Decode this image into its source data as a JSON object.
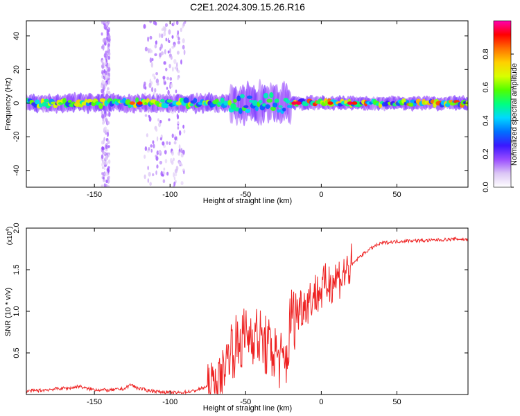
{
  "figure": {
    "title": "C2E1.2024.309.15.26.R16"
  },
  "chart_data": [
    {
      "type": "heatmap",
      "title": "C2E1.2024.309.15.26.R16",
      "xlabel": "Height of straight line (km)",
      "ylabel": "Frequency (Hz)",
      "xlim": [
        -195,
        97
      ],
      "ylim": [
        -50,
        49
      ],
      "xticks": [
        -150,
        -100,
        -50,
        0,
        50
      ],
      "yticks": [
        -40,
        -20,
        0,
        20,
        40
      ],
      "xtick_labels": [
        "-150",
        "-100",
        "-50",
        "0",
        "50"
      ],
      "ytick_labels": [
        "-40",
        "-20",
        "0",
        "20",
        "40"
      ],
      "colorbar": {
        "label": "Normalized spectral amplitude",
        "range": [
          0.0,
          1.0
        ],
        "ticks": [
          0.0,
          0.2,
          0.4,
          0.6,
          0.8
        ],
        "tick_labels": [
          "0.0",
          "0.2",
          "0.4",
          "0.6",
          "0.8"
        ],
        "colors": [
          "#ffffff",
          "#dcc6f5",
          "#9a4dff",
          "#3a18ff",
          "#0070ff",
          "#00d8ff",
          "#00ff80",
          "#50ff00",
          "#d8ff00",
          "#ffd000",
          "#ff7000",
          "#ff0000",
          "#ff00b0"
        ]
      },
      "band": {
        "center_frequency_hz": 0,
        "segments": [
          {
            "x_range": [
              -195,
              -60
            ],
            "half_width_hz": 3,
            "peak_amplitude": 0.75
          },
          {
            "x_range": [
              -60,
              -20
            ],
            "half_width_hz": 8,
            "peak_amplitude": 0.6
          },
          {
            "x_range": [
              -20,
              97
            ],
            "half_width_hz": 2,
            "peak_amplitude": 0.9
          }
        ],
        "peaks": [
          {
            "x": -125,
            "amplitude": 0.85
          },
          {
            "x": -120,
            "amplitude": 0.9
          },
          {
            "x": -18,
            "amplitude": 0.95
          },
          {
            "x": -15,
            "amplitude": 0.95
          },
          {
            "x": 6,
            "amplitude": 0.9
          },
          {
            "x": 19,
            "amplitude": 0.95
          },
          {
            "x": 22,
            "amplitude": 0.9
          }
        ]
      },
      "scatter_noise_x_ranges": [
        [
          -145,
          -140
        ],
        [
          -117,
          -90
        ]
      ]
    },
    {
      "type": "line",
      "xlabel": "Height of straight line (km)",
      "ylabel": "SNR (10 * v/v)",
      "y_multiplier_label": "(x10",
      "y_multiplier_exponent": "4",
      "y_multiplier_close": ")",
      "xlim": [
        -195,
        97
      ],
      "ylim": [
        0,
        2.0
      ],
      "xticks": [
        -150,
        -100,
        -50,
        0,
        50
      ],
      "yticks": [
        0.5,
        1.0,
        1.5,
        2.0
      ],
      "xtick_labels": [
        "-150",
        "-100",
        "-50",
        "0",
        "50"
      ],
      "ytick_labels": [
        "0.5",
        "1.0",
        "1.5",
        "2.0"
      ],
      "line_color": "#ee2222",
      "series": [
        {
          "x": [
            -195,
            -185,
            -175,
            -165,
            -160,
            -155,
            -150,
            -140,
            -130,
            -126,
            -122,
            -115,
            -105,
            -95,
            -85,
            -78,
            -72,
            -68,
            -65,
            -60,
            -55,
            -50,
            -45,
            -40,
            -35,
            -30,
            -25,
            -22,
            -20,
            -18,
            -15,
            -10,
            -5,
            0,
            5,
            10,
            15,
            20,
            25,
            30,
            35,
            40,
            50,
            60,
            70,
            80,
            90,
            97
          ],
          "y": [
            0.04,
            0.05,
            0.07,
            0.08,
            0.1,
            0.07,
            0.06,
            0.05,
            0.07,
            0.12,
            0.08,
            0.05,
            0.03,
            0.02,
            0.04,
            0.08,
            0.12,
            0.15,
            0.3,
            0.55,
            0.6,
            0.7,
            0.75,
            0.65,
            0.55,
            0.5,
            0.35,
            0.5,
            1.0,
            0.9,
            1.05,
            1.1,
            1.2,
            1.25,
            1.35,
            1.4,
            1.45,
            1.55,
            1.65,
            1.72,
            1.78,
            1.82,
            1.84,
            1.85,
            1.85,
            1.86,
            1.87,
            1.86
          ]
        }
      ]
    }
  ]
}
